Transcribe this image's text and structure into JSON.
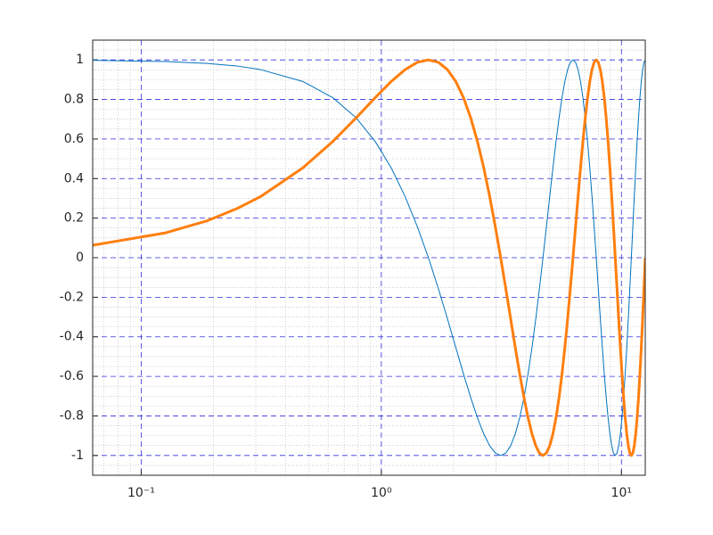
{
  "chart_data": {
    "type": "line",
    "x": [
      0.0628,
      0.1257,
      0.1885,
      0.2513,
      0.3142,
      0.4712,
      0.6283,
      0.7854,
      0.9425,
      1.0996,
      1.2566,
      1.4137,
      1.5708,
      1.7279,
      1.885,
      2.042,
      2.1991,
      2.3562,
      2.5133,
      2.6704,
      2.8274,
      2.9845,
      3.1416,
      3.2987,
      3.4558,
      3.6128,
      3.7699,
      3.927,
      4.0841,
      4.2412,
      4.3982,
      4.5553,
      4.7124,
      4.8695,
      5.0265,
      5.1836,
      5.3407,
      5.4978,
      5.6549,
      5.8119,
      5.969,
      6.1261,
      6.2832,
      6.4403,
      6.5973,
      6.7544,
      6.9115,
      7.0686,
      7.2257,
      7.3827,
      7.5398,
      7.6969,
      7.854,
      8.0111,
      8.1681,
      8.3252,
      8.4823,
      8.6394,
      8.7965,
      8.9535,
      9.1106,
      9.2677,
      9.4248,
      9.5819,
      9.7389,
      9.896,
      10.0531,
      10.2102,
      10.3673,
      10.5243,
      10.6814,
      10.8385,
      10.9956,
      11.1527,
      11.3097,
      11.4668,
      11.6239,
      11.781,
      11.9381,
      12.0951,
      12.2522,
      12.4093,
      12.5664
    ],
    "series": [
      {
        "color": "#0072bd",
        "linewidth": 1,
        "values": [
          0.998,
          0.992,
          0.982,
          0.969,
          0.951,
          0.891,
          0.809,
          0.707,
          0.588,
          0.454,
          0.309,
          0.156,
          0,
          -0.156,
          -0.309,
          -0.454,
          -0.588,
          -0.707,
          -0.809,
          -0.891,
          -0.951,
          -0.988,
          -1,
          -0.988,
          -0.951,
          -0.891,
          -0.809,
          -0.707,
          -0.588,
          -0.454,
          -0.309,
          -0.156,
          0,
          0.156,
          0.309,
          0.454,
          0.588,
          0.707,
          0.809,
          0.891,
          0.951,
          0.988,
          1,
          0.988,
          0.951,
          0.891,
          0.809,
          0.707,
          0.588,
          0.454,
          0.309,
          0.156,
          0,
          -0.156,
          -0.309,
          -0.454,
          -0.588,
          -0.707,
          -0.809,
          -0.891,
          -0.951,
          -0.988,
          -1,
          -0.988,
          -0.951,
          -0.891,
          -0.809,
          -0.707,
          -0.588,
          -0.454,
          -0.309,
          -0.156,
          0,
          0.156,
          0.309,
          0.454,
          0.588,
          0.707,
          0.809,
          0.891,
          0.951,
          0.988,
          1
        ]
      },
      {
        "color": "#ff7f0e",
        "linewidth": 3,
        "values": [
          0.063,
          0.125,
          0.187,
          0.249,
          0.309,
          0.454,
          0.588,
          0.707,
          0.809,
          0.891,
          0.951,
          0.988,
          1,
          0.988,
          0.951,
          0.891,
          0.809,
          0.707,
          0.588,
          0.454,
          0.309,
          0.156,
          0,
          -0.156,
          -0.309,
          -0.454,
          -0.588,
          -0.707,
          -0.809,
          -0.891,
          -0.951,
          -0.988,
          -1,
          -0.988,
          -0.951,
          -0.891,
          -0.809,
          -0.707,
          -0.588,
          -0.454,
          -0.309,
          -0.156,
          0,
          0.156,
          0.309,
          0.454,
          0.588,
          0.707,
          0.809,
          0.891,
          0.951,
          0.988,
          1,
          0.988,
          0.951,
          0.891,
          0.809,
          0.707,
          0.588,
          0.454,
          0.309,
          0.156,
          0,
          -0.156,
          -0.309,
          -0.454,
          -0.588,
          -0.707,
          -0.809,
          -0.891,
          -0.951,
          -0.988,
          -1,
          -0.988,
          -0.951,
          -0.891,
          -0.809,
          -0.707,
          -0.588,
          -0.454,
          -0.309,
          -0.156,
          0
        ]
      }
    ],
    "xscale": "log",
    "xlim": [
      0.0628,
      12.5664
    ],
    "ylim": [
      -1.1,
      1.1
    ],
    "xticks": [
      {
        "value": 0.1,
        "label": "10⁻¹"
      },
      {
        "value": 1,
        "label": "10⁰"
      },
      {
        "value": 10,
        "label": "10¹"
      }
    ],
    "yticks": [
      -1,
      -0.8,
      -0.6,
      -0.4,
      -0.2,
      0,
      0.2,
      0.4,
      0.6,
      0.8,
      1
    ],
    "xminorticks": [
      0.07,
      0.08,
      0.09,
      0.2,
      0.3,
      0.4,
      0.5,
      0.6,
      0.7,
      0.8,
      0.9,
      2,
      3,
      4,
      5,
      6,
      7,
      8,
      9
    ],
    "yminorticks": [
      -1.05,
      -0.95,
      -0.9,
      -0.85,
      -0.75,
      -0.7,
      -0.65,
      -0.55,
      -0.5,
      -0.45,
      -0.35,
      -0.3,
      -0.25,
      -0.15,
      -0.1,
      -0.05,
      0.05,
      0.1,
      0.15,
      0.25,
      0.3,
      0.35,
      0.45,
      0.5,
      0.55,
      0.65,
      0.7,
      0.75,
      0.85,
      0.9,
      0.95,
      1.05
    ],
    "grid": true,
    "minor_grid": true,
    "grid_color": "#3030e0"
  }
}
